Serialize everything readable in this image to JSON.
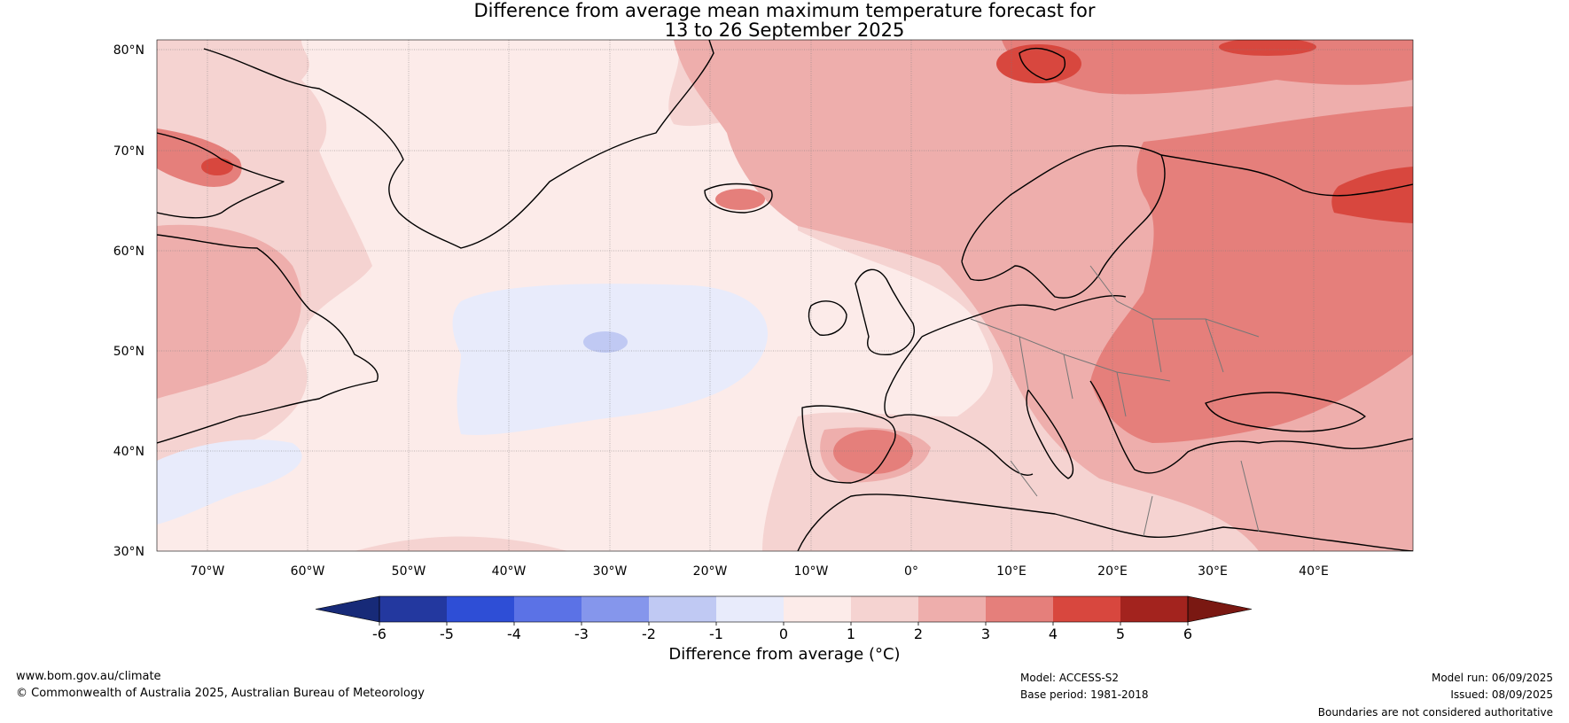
{
  "title_line1": "Difference from average mean maximum temperature forecast for",
  "title_line2": "13 to 26 September 2025",
  "map": {
    "lat_labels": [
      "80°N",
      "70°N",
      "60°N",
      "50°N",
      "40°N",
      "30°N"
    ],
    "lon_labels": [
      "70°W",
      "60°W",
      "50°W",
      "40°W",
      "30°W",
      "20°W",
      "10°W",
      "0°",
      "10°E",
      "20°E",
      "30°E",
      "40°E"
    ],
    "lat_range": [
      30,
      81
    ],
    "lon_range": [
      -75,
      50
    ]
  },
  "colorbar": {
    "title": "Difference from average (°C)",
    "ticks": [
      "-6",
      "-5",
      "-4",
      "-3",
      "-2",
      "-1",
      "0",
      "1",
      "2",
      "3",
      "4",
      "5",
      "6"
    ],
    "colors": [
      "#23389f",
      "#2e4ed6",
      "#5b72e6",
      "#8596ec",
      "#c0c9f3",
      "#e8ebfb",
      "#fcebe9",
      "#f5d3d1",
      "#eeaeac",
      "#e57f7b",
      "#d8473e",
      "#a3231e"
    ],
    "under_color": "#172a78",
    "over_color": "#7a1812"
  },
  "footer": {
    "website": "www.bom.gov.au/climate",
    "copyright": "© Commonwealth of Australia 2025, Australian Bureau of Meteorology",
    "model": "Model: ACCESS-S2",
    "base_period": "Base period: 1981-2018",
    "model_run": "Model run: 06/09/2025",
    "issued": "Issued: 08/09/2025",
    "disclaimer": "Boundaries are not considered authoritative"
  }
}
